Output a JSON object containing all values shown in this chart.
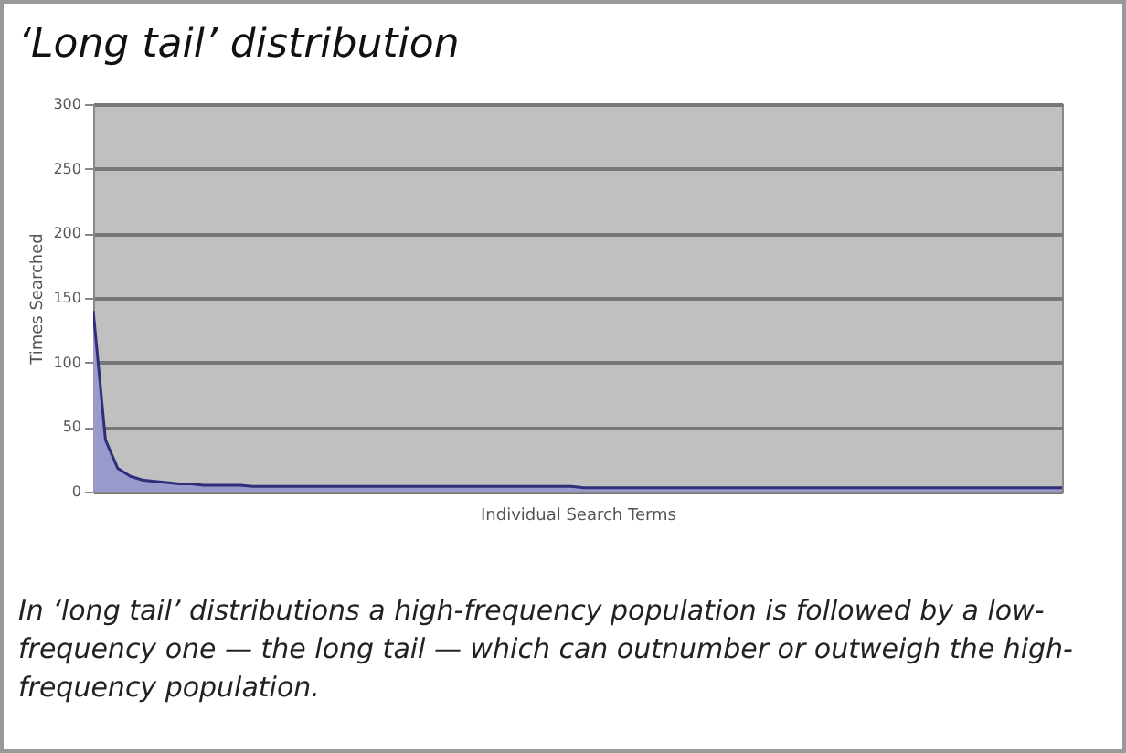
{
  "chart_data": {
    "type": "area",
    "title": "‘Long tail’ distribution",
    "xlabel": "Individual Search Terms",
    "ylabel": "Times Searched",
    "annotations": [
      "In ‘long tail’ distributions a high-frequency population is followed by a low-frequency one — the long tail — which can outnumber or outweigh the high-frequency population."
    ],
    "categories": [
      null,
      null,
      null,
      null,
      null,
      null,
      null,
      null,
      null,
      null,
      null,
      null,
      null,
      null,
      null,
      null,
      null,
      null,
      null,
      null,
      null,
      null,
      null,
      null,
      null,
      null,
      null,
      null,
      null,
      null,
      null,
      null,
      null,
      null,
      null,
      null,
      null,
      null,
      null,
      null,
      null,
      null,
      null,
      null,
      null,
      null,
      null,
      null,
      null,
      null,
      null,
      null,
      null,
      null,
      null,
      null,
      null,
      null,
      null,
      null,
      null,
      null,
      null,
      null,
      null,
      null,
      null,
      null,
      null,
      null,
      null,
      null,
      null,
      null,
      null,
      null,
      null,
      null,
      null,
      null
    ],
    "series": [
      {
        "color": "#9999cc",
        "values": [
          140,
          40,
          18,
          12,
          9,
          8,
          7,
          6,
          6,
          5,
          5,
          5,
          5,
          4,
          4,
          4,
          4,
          4,
          4,
          4,
          4,
          4,
          4,
          4,
          4,
          4,
          4,
          4,
          4,
          4,
          4,
          4,
          4,
          4,
          4,
          4,
          4,
          4,
          4,
          4,
          3,
          3,
          3,
          3,
          3,
          3,
          3,
          3,
          3,
          3,
          3,
          3,
          3,
          3,
          3,
          3,
          3,
          3,
          3,
          3,
          3,
          3,
          3,
          3,
          3,
          3,
          3,
          3,
          3,
          3,
          3,
          3,
          3,
          3,
          3,
          3,
          3,
          3,
          3,
          3
        ]
      }
    ],
    "ylim": [
      0,
      300
    ],
    "yticks": [
      0,
      50,
      100,
      150,
      200,
      250,
      300
    ],
    "grid": "y",
    "tick_labels": "y"
  }
}
